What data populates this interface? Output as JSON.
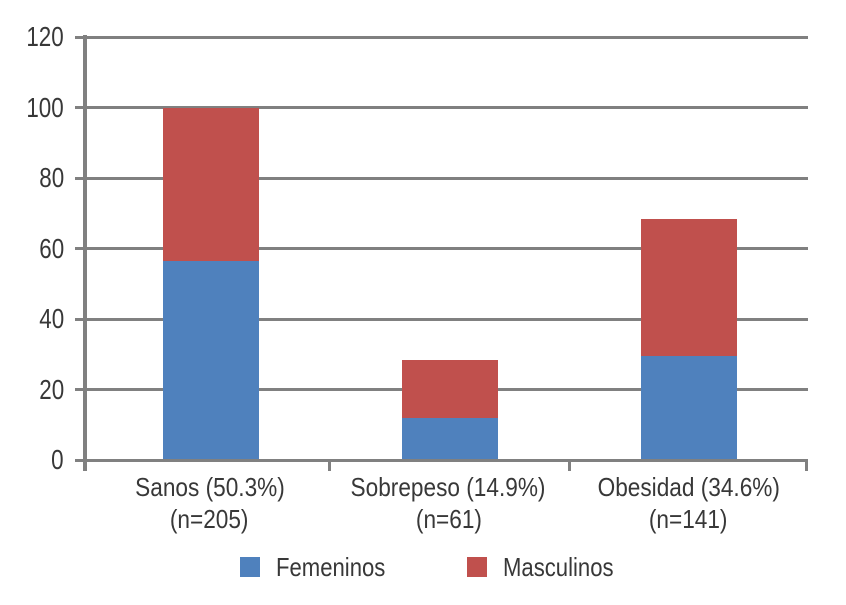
{
  "chart_data": {
    "type": "bar",
    "stacked": true,
    "title": "",
    "xlabel": "",
    "ylabel": "",
    "categories": [
      {
        "key": "sanos",
        "line1": "Sanos (50.3%)",
        "line2": "(n=205)"
      },
      {
        "key": "sobrepeso",
        "line1": "Sobrepeso (14.9%)",
        "line2": "(n=61)"
      },
      {
        "key": "obesidad",
        "line1": "Obesidad (34.6%)",
        "line2": "(n=141)"
      }
    ],
    "series": [
      {
        "name": "Femeninos",
        "color": "#4F81BD",
        "values": [
          56.5,
          12,
          29.5
        ]
      },
      {
        "name": "Masculinos",
        "color": "#C0504D",
        "values": [
          43.5,
          16.5,
          39
        ]
      }
    ],
    "stack_totals": [
      100,
      28.5,
      68.5
    ],
    "ylim": [
      0,
      120
    ],
    "yticks": [
      0,
      20,
      40,
      60,
      80,
      100,
      120
    ],
    "grid": true,
    "legend_position": "bottom",
    "colors": {
      "gridline": "#808080",
      "axis": "#808080",
      "text": "#383838",
      "background": "#ffffff"
    }
  }
}
